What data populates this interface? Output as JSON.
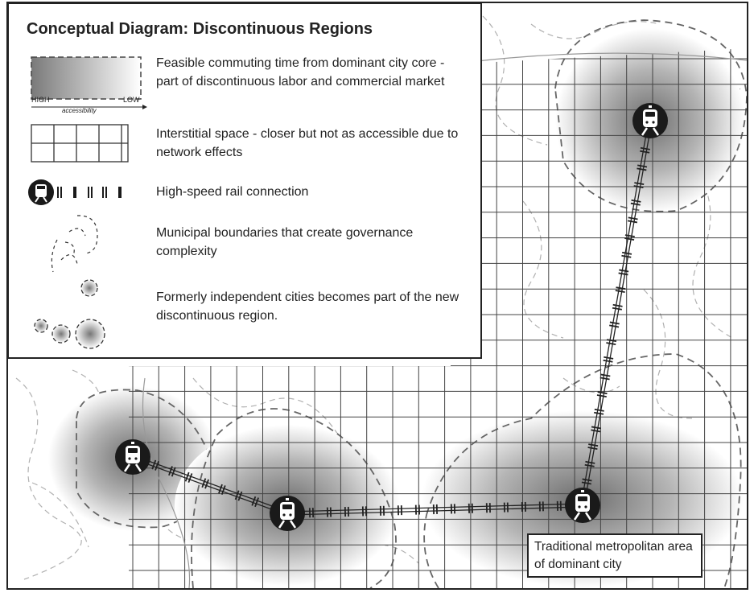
{
  "legend": {
    "title": "Conceptual Diagram: Discontinuous Regions",
    "items": [
      {
        "icon": "gradient-accessibility-swatch",
        "text": "Feasible commuting time from dominant city core - part of discontinuous labor and commercial market",
        "scale_high": "HIGH",
        "scale_low": "LOW",
        "scale_label": "accessibility"
      },
      {
        "icon": "grid-swatch",
        "text": "Interstitial space - closer but not as accessible due to network effects"
      },
      {
        "icon": "train-rail-icon",
        "text": "High-speed rail connection"
      },
      {
        "icon": "dashed-boundary-icon",
        "text": "Municipal boundaries that create governance complexity"
      },
      {
        "icon": "merged-cities-icon",
        "text": "Formerly independent cities becomes part of the new discontinuous region."
      }
    ]
  },
  "callout": {
    "text": "Traditional metropolitan area of dominant city"
  },
  "colors": {
    "ink": "#222222",
    "grid": "#555555",
    "boundary": "#aaaaaa",
    "region_core": "#6e6e6e"
  }
}
